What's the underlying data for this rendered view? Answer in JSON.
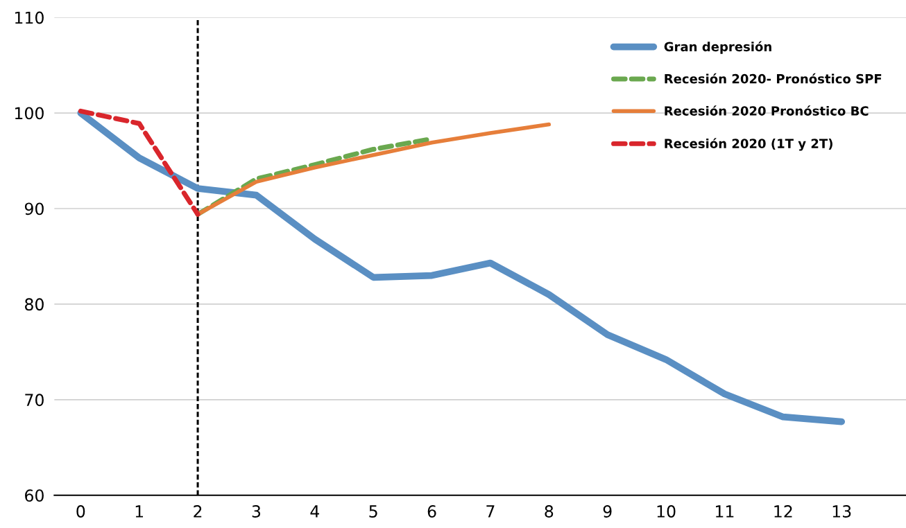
{
  "chart_data": {
    "type": "line",
    "x": [
      0,
      1,
      2,
      3,
      4,
      5,
      6,
      7,
      8,
      9,
      10,
      11,
      12,
      13
    ],
    "series": [
      {
        "name": "Gran depresión",
        "color": "#5a8fc3",
        "line_style": "solid",
        "values": [
          100,
          95.3,
          92.1,
          91.4,
          86.8,
          82.8,
          83.0,
          84.3,
          81.0,
          76.8,
          74.2,
          70.6,
          68.2,
          67.7
        ]
      },
      {
        "name": "Recesión 2020- Pronóstico SPF",
        "color": "#6aa84f",
        "line_style": "dashed",
        "values": [
          null,
          null,
          89.4,
          93.1,
          94.6,
          96.2,
          97.3,
          null,
          null,
          null,
          null,
          null,
          null,
          null
        ]
      },
      {
        "name": "Recesión 2020 Pronóstico BC",
        "color": "#e67e3a",
        "line_style": "solid",
        "values": [
          null,
          null,
          89.4,
          92.8,
          94.3,
          95.6,
          96.9,
          97.9,
          98.8,
          null,
          null,
          null,
          null,
          null
        ]
      },
      {
        "name": "Recesión 2020 (1T y 2T)",
        "color": "#d9262c",
        "line_style": "dashed",
        "values": [
          100.2,
          98.9,
          89.4,
          null,
          null,
          null,
          null,
          null,
          null,
          null,
          null,
          null,
          null,
          null
        ]
      }
    ],
    "xlim": [
      -0.45,
      14.1
    ],
    "xticks": [
      0,
      1,
      2,
      3,
      4,
      5,
      6,
      7,
      8,
      9,
      10,
      11,
      12,
      13
    ],
    "ylim": [
      60,
      110
    ],
    "yticks": [
      60,
      70,
      80,
      90,
      100,
      110
    ],
    "grid": "y",
    "legend": "top right",
    "marker": "none",
    "ref_lines": [
      {
        "axis": "x",
        "value": 2,
        "color": "#000000",
        "line_style": "dashed"
      }
    ]
  }
}
